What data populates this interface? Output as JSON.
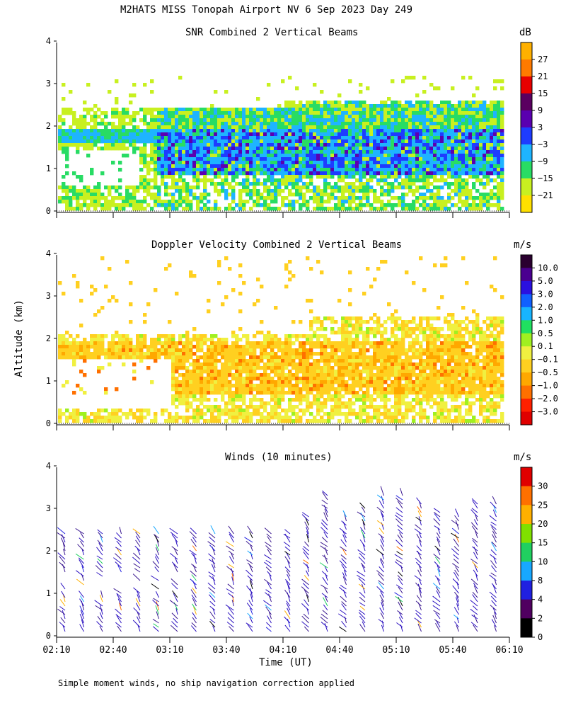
{
  "page": {
    "title": "M2HATS MISS Tonopah Airport NV   6 Sep 2023 Day 249",
    "ylabel": "Altitude (km)",
    "xlabel": "Time (UT)",
    "footnote": "Simple moment winds, no ship navigation correction applied"
  },
  "chart_data": [
    {
      "type": "heatmap",
      "title": "SNR Combined 2 Vertical Beams",
      "units": "dB",
      "ylabel": "Altitude (km)",
      "ylim": [
        0,
        4
      ],
      "y_ticks": [
        "0",
        "1",
        "2",
        "3",
        "4"
      ],
      "xlim": [
        "02:10",
        "06:10"
      ],
      "colorbar_labels": [
        "27",
        "21",
        "15",
        "9",
        "3",
        "−3",
        "−9",
        "−15",
        "−21"
      ],
      "colorbar_colors": [
        "#ffb000",
        "#ff7a00",
        "#e80000",
        "#5a0060",
        "#5a00b0",
        "#1e3cff",
        "#1eb4ff",
        "#28dc64",
        "#c8f020",
        "#ffe000"
      ]
    },
    {
      "type": "heatmap",
      "title": "Doppler Velocity Combined 2 Vertical Beams",
      "units": "m/s",
      "ylabel": "Altitude (km)",
      "ylim": [
        0,
        4
      ],
      "y_ticks": [
        "0",
        "1",
        "2",
        "3",
        "4"
      ],
      "xlim": [
        "02:10",
        "06:10"
      ],
      "colorbar_labels": [
        "10.0",
        "5.0",
        "3.0",
        "2.0",
        "1.0",
        "0.5",
        "0.1",
        "−0.1",
        "−0.5",
        "−1.0",
        "−2.0",
        "−3.0"
      ],
      "colorbar_colors": [
        "#2a0030",
        "#4a0090",
        "#2a10e0",
        "#1060ff",
        "#18b4ff",
        "#20e060",
        "#a0f020",
        "#f0f040",
        "#ffd020",
        "#ffa800",
        "#ff7000",
        "#ff2000",
        "#e00000"
      ]
    },
    {
      "type": "scatter",
      "title": "Winds (10 minutes)",
      "units": "m/s",
      "ylabel": "Altitude (km)",
      "xlabel": "Time (UT)",
      "ylim": [
        0,
        4
      ],
      "y_ticks": [
        "0",
        "1",
        "2",
        "3",
        "4"
      ],
      "x_ticks": [
        "02:10",
        "02:40",
        "03:10",
        "03:40",
        "04:10",
        "04:40",
        "05:10",
        "05:40",
        "06:10"
      ],
      "colorbar_labels": [
        "30",
        "25",
        "20",
        "15",
        "10",
        "8",
        "4",
        "2",
        "0"
      ],
      "colorbar_colors": [
        "#e00000",
        "#ff7000",
        "#ffb000",
        "#80e000",
        "#20d060",
        "#18a8ff",
        "#2020e0",
        "#500060",
        "#000000"
      ]
    }
  ]
}
